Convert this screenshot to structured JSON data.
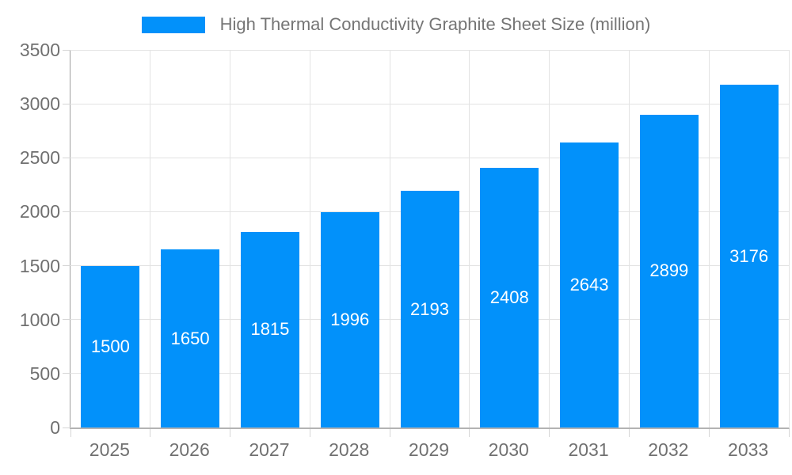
{
  "chart_data": {
    "type": "bar",
    "title": "High Thermal Conductivity Graphite Sheet Size (million)",
    "legend": {
      "position": "top-center",
      "entries": [
        {
          "label": "High Thermal Conductivity Graphite Sheet Size (million)",
          "color": "#0291fa"
        }
      ]
    },
    "categories": [
      "2025",
      "2026",
      "2027",
      "2028",
      "2029",
      "2030",
      "2031",
      "2032",
      "2033"
    ],
    "values": [
      1500,
      1650,
      1815,
      1996,
      2193,
      2408,
      2643,
      2899,
      3176
    ],
    "bar_labels": [
      "1500",
      "1650",
      "1815",
      "1996",
      "2193",
      "2408",
      "2643",
      "2899",
      "3176"
    ],
    "xlabel": "",
    "ylabel": "",
    "ylim": [
      0,
      3500
    ],
    "yticks": [
      0,
      500,
      1000,
      1500,
      2000,
      2500,
      3000,
      3500
    ],
    "grid": true,
    "colors": {
      "bar": "#0291fa",
      "bar_label_text": "#ffffff",
      "axis_line": "#9e9e9e",
      "baseline": "#b3b3b3",
      "gridline": "#e3e3e3",
      "tick": "#d6d6d6",
      "axis_text": "#707070",
      "legend_text": "#757575",
      "background": "#ffffff"
    }
  }
}
